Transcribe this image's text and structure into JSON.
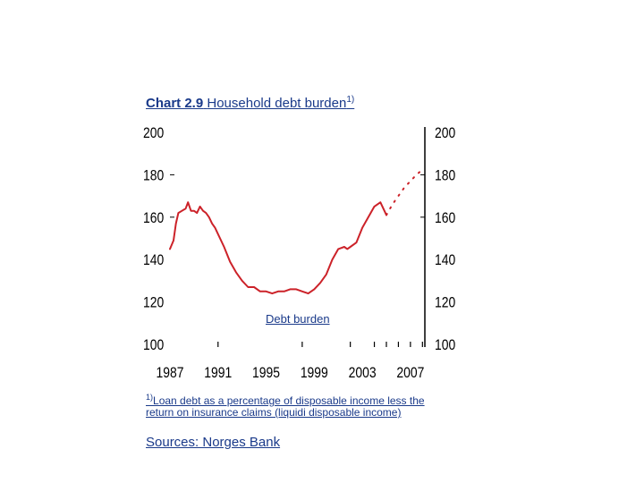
{
  "title": {
    "number": "Chart 2.9",
    "text": "Household debt burden",
    "marker": "1)"
  },
  "footnote": {
    "marker": "1)",
    "text": "Loan debt as a percentage of disposable income less the return on insurance claims (liquidi disposable income)"
  },
  "sources": "Sources: Norges Bank",
  "colors": {
    "series": "#cc2229",
    "text": "#1a3a8a",
    "axis": "#000000"
  },
  "chart_data": {
    "type": "line",
    "title": "Household debt burden",
    "xlabel": "",
    "ylabel": "",
    "xlim": [
      1987,
      2008.2
    ],
    "ylim": [
      100,
      200
    ],
    "x_ticks": [
      "1987",
      "1991",
      "1995",
      "1999",
      "2003",
      "2007"
    ],
    "y_ticks_left": [
      "200",
      "180",
      "160",
      "140",
      "120",
      "100"
    ],
    "y_ticks_right": [
      "200",
      "180",
      "160",
      "140",
      "120",
      "100"
    ],
    "grid": false,
    "series": [
      {
        "name": "Debt burden",
        "style": "solid",
        "x": [
          1987.0,
          1987.3,
          1987.5,
          1987.7,
          1988.0,
          1988.3,
          1988.5,
          1988.75,
          1989.0,
          1989.25,
          1989.5,
          1989.75,
          1990.0,
          1990.25,
          1990.5,
          1990.75,
          1991.0,
          1991.5,
          1992.0,
          1992.5,
          1993.0,
          1993.5,
          1994.0,
          1994.5,
          1995.0,
          1995.5,
          1996.0,
          1996.5,
          1997.0,
          1997.5,
          1998.0,
          1998.5,
          1999.0,
          1999.5,
          2000.0,
          2000.5,
          2001.0,
          2001.5,
          2001.75,
          2002.0,
          2002.5,
          2003.0,
          2003.5,
          2004.0,
          2004.5,
          2005.0
        ],
        "y": [
          145,
          149,
          157,
          162,
          163,
          164,
          167,
          163,
          163,
          162,
          165,
          163,
          162,
          160,
          157,
          155,
          152,
          146,
          139,
          134,
          130,
          127,
          127,
          125,
          125,
          124,
          125,
          125,
          126,
          126,
          125,
          124,
          126,
          129,
          133,
          140,
          145,
          146,
          145,
          146,
          148,
          155,
          160,
          165,
          167,
          161
        ]
      },
      {
        "name": "",
        "style": "dotted",
        "x": [
          2005.0,
          2005.5,
          2006.0,
          2006.5,
          2007.0,
          2007.5,
          2007.9
        ],
        "y": [
          161,
          166,
          170,
          174,
          177,
          180,
          182
        ]
      }
    ],
    "annotations": [
      "Debt burden"
    ]
  }
}
